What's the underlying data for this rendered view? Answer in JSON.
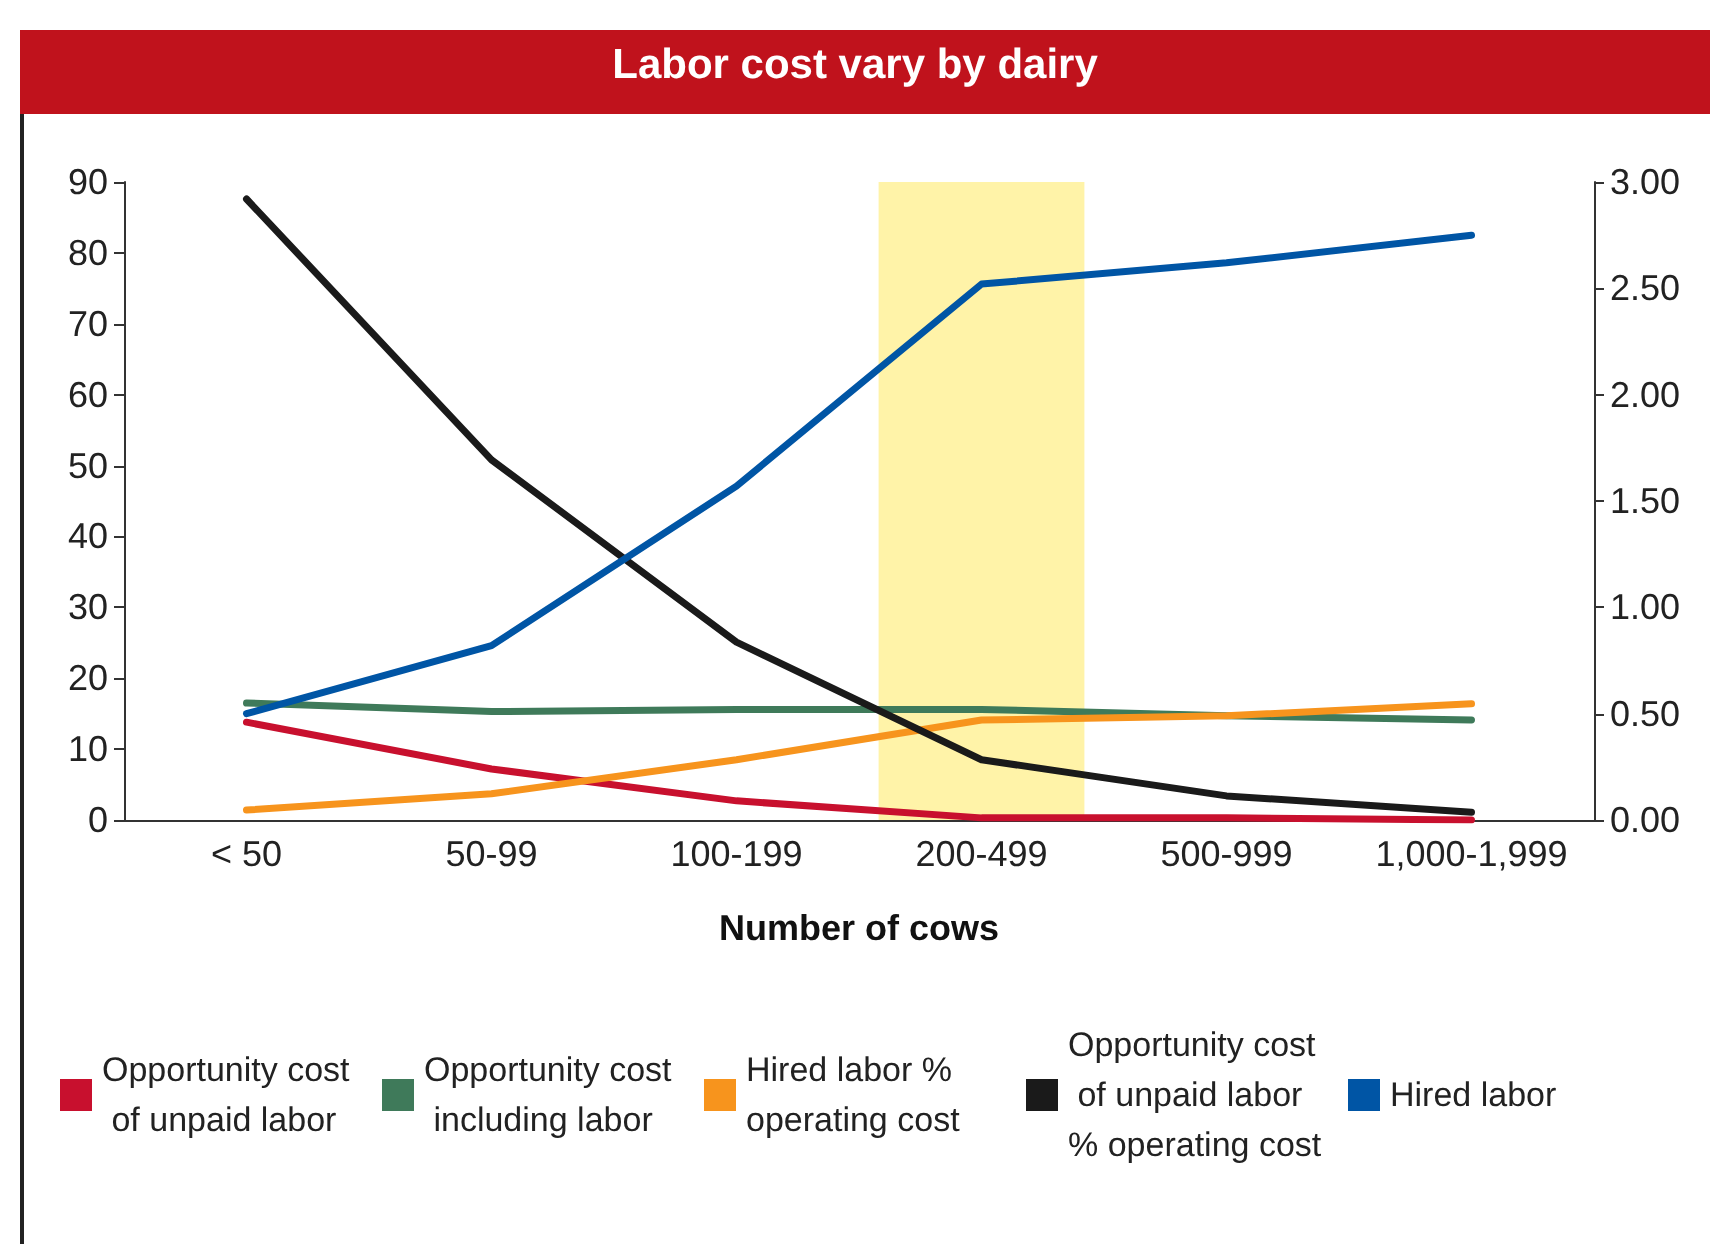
{
  "chart_data": {
    "type": "line",
    "title": "Labor cost vary by dairy",
    "xlabel": "Number of cows",
    "categories": [
      "< 50",
      "50-99",
      "100-199",
      "200-499",
      "500-999",
      "1,000-1,999"
    ],
    "series": [
      {
        "name": "Opportunity cost of unpaid labor",
        "color": "#c8102e",
        "axis": "y2",
        "values": [
          0.46,
          0.24,
          0.09,
          0.01,
          0.01,
          0.0
        ]
      },
      {
        "name": "Opportunity cost including labor",
        "color": "#3f7a5a",
        "axis": "y2",
        "values": [
          0.55,
          0.51,
          0.52,
          0.52,
          0.49,
          0.47
        ]
      },
      {
        "name": "Hired labor % operating cost",
        "color": "#f7941d",
        "values": [
          1.4,
          3.7,
          8.5,
          14.1,
          14.7,
          16.4
        ]
      },
      {
        "name": "Opportunity cost of unpaid labor % operating cost",
        "color": "#1a1a1a",
        "values": [
          87.6,
          50.8,
          25.1,
          8.5,
          3.4,
          1.1
        ]
      },
      {
        "name": "Hired labor",
        "color": "#0055a5",
        "axis": "y2",
        "values": [
          0.5,
          0.82,
          1.57,
          2.52,
          2.62,
          2.75
        ]
      }
    ],
    "ylim": [
      0,
      90
    ],
    "yticks": [
      0,
      10,
      20,
      30,
      40,
      50,
      60,
      70,
      80,
      90
    ],
    "y2lim": [
      0,
      3
    ],
    "y2ticks": [
      {
        "value": 0,
        "label": "0.00"
      },
      {
        "value": 0.5,
        "label": "0.50"
      },
      {
        "value": 1,
        "label": "1.00"
      },
      {
        "value": 1.5,
        "label": "1.50"
      },
      {
        "value": 2,
        "label": "2.00"
      },
      {
        "value": 2.5,
        "label": "2.50"
      },
      {
        "value": 3,
        "label": "3.00"
      }
    ],
    "bands": [
      {
        "axis": "x",
        "from": "200-499",
        "to": "200-499",
        "color": "#fff3a8"
      }
    ],
    "legend": "bottom",
    "grid": false,
    "marker": "none",
    "line_style": "solid"
  }
}
